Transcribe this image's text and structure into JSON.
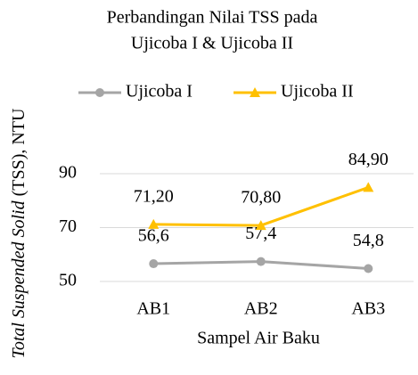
{
  "chart_data": {
    "type": "line",
    "title": [
      "Perbandingan Nilai TSS pada",
      "Ujicoba I & Ujicoba II"
    ],
    "x_label": "Sampel Air Baku",
    "y_label": [
      "Total Suspended Solid",
      "(TSS), NTU"
    ],
    "categories": [
      "AB1",
      "AB2",
      "AB3"
    ],
    "series": [
      {
        "name": "Ujicoba I",
        "color": "#a5a5a5",
        "marker": "circle",
        "values": [
          56.6,
          57.4,
          54.8
        ],
        "value_labels": [
          "56,6",
          "57,4",
          "54,8"
        ]
      },
      {
        "name": "Ujicoba II",
        "color": "#ffc000",
        "marker": "triangle",
        "values": [
          71.2,
          70.8,
          84.9
        ],
        "value_labels": [
          "71,20",
          "70,80",
          "84,90"
        ]
      }
    ],
    "ylim": [
      50,
      90
    ],
    "yticks": [
      50,
      70,
      90
    ],
    "grid": true,
    "legend": "top"
  }
}
